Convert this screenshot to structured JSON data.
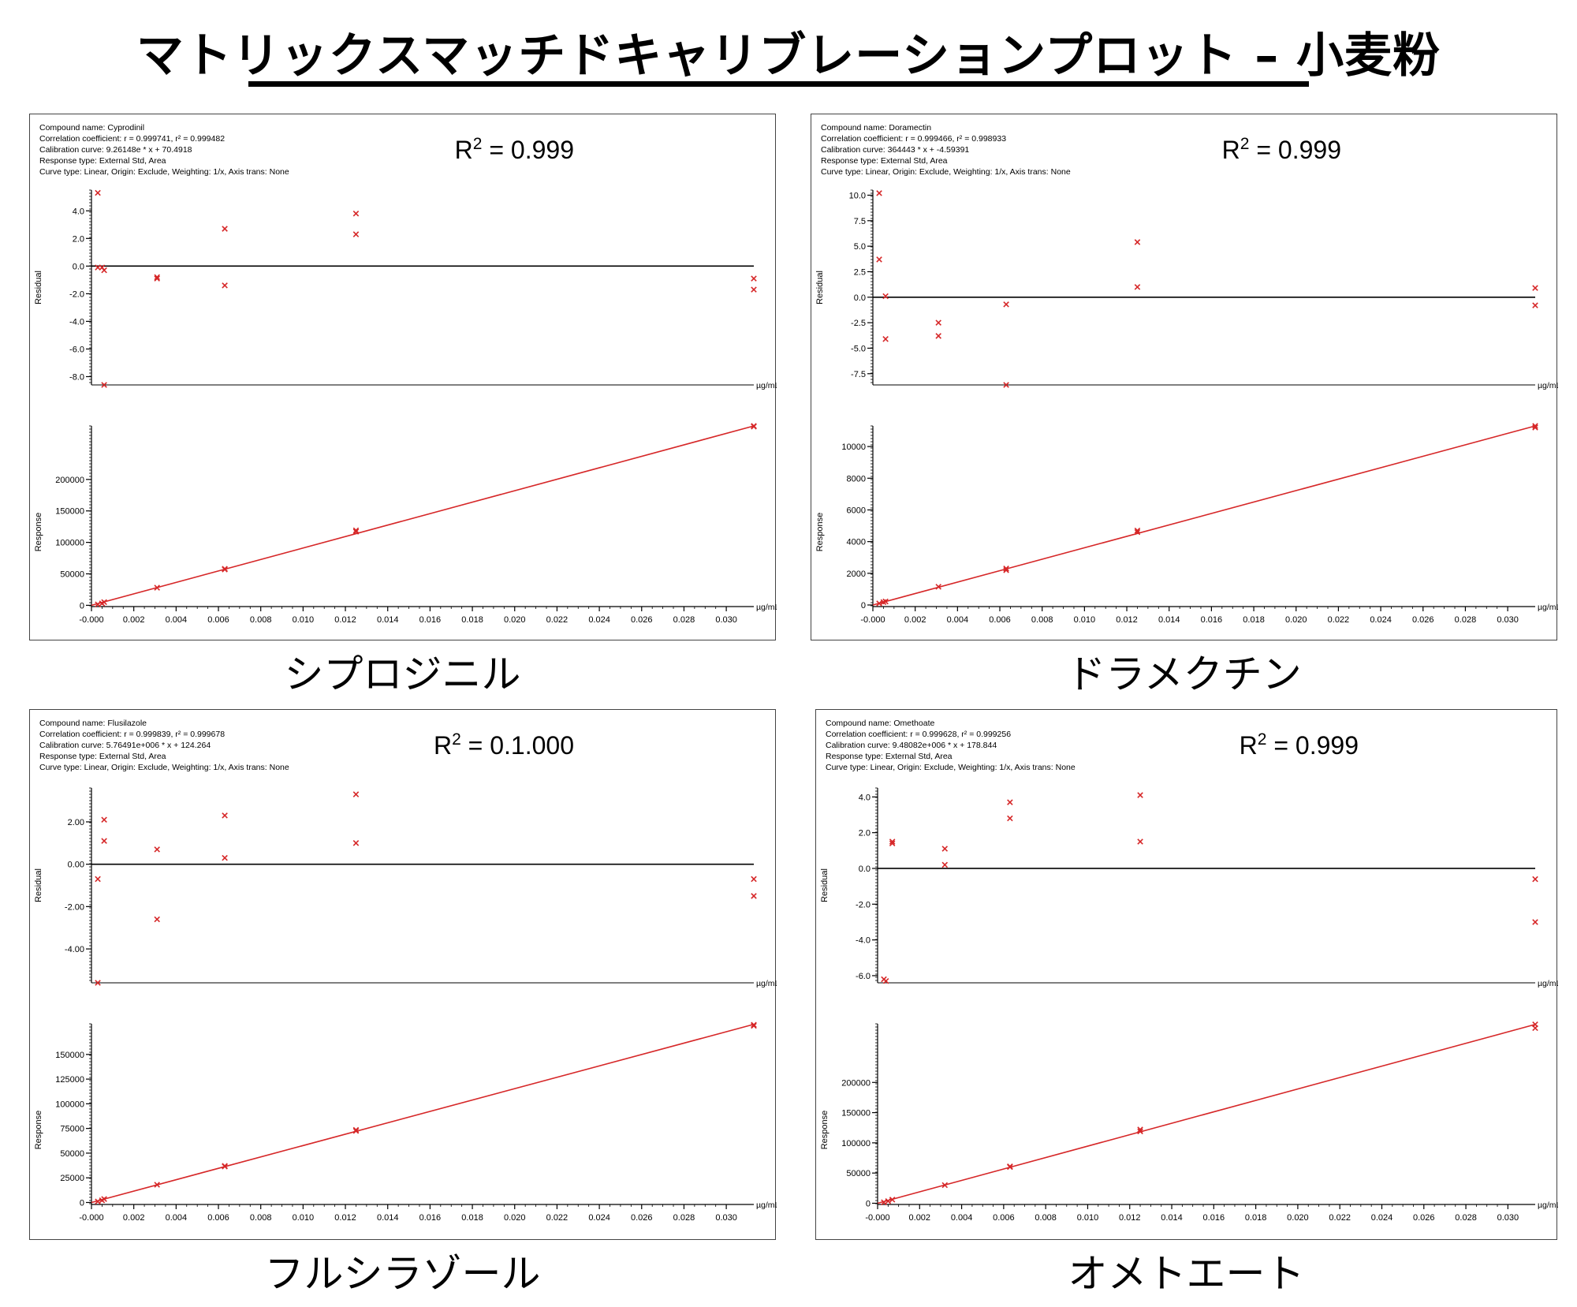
{
  "title": "マトリックスマッチドキャリブレーションプロット – 小麦粉",
  "x_unit": "µg/mL",
  "residual_ylabel": "Residual",
  "response_ylabel": "Response",
  "x_ticks": [
    "-0.000",
    "0.002",
    "0.004",
    "0.006",
    "0.008",
    "0.010",
    "0.012",
    "0.014",
    "0.016",
    "0.018",
    "0.020",
    "0.022",
    "0.024",
    "0.026",
    "0.028",
    "0.030"
  ],
  "colors": {
    "point": "#d62728",
    "fit": "#d62728",
    "zero_line": "#000000"
  },
  "chart_data": [
    {
      "type": "scatter",
      "panel_name": "シプロジニル",
      "info": [
        "Compound name: Cyprodinil",
        "Correlation coefficient: r = 0.999741, r² = 0.999482",
        "Calibration curve: 9.26148e * x + 70.4918",
        "Response type: External Std, Area",
        "Curve type: Linear, Origin: Exclude, Weighting: 1/x, Axis trans: None"
      ],
      "r2_text": "= 0.999",
      "residual": {
        "ylim": [
          -8.6,
          5.5
        ],
        "yticks": [
          4.0,
          2.0,
          0.0,
          -2.0,
          -4.0,
          -6.0,
          -8.0
        ],
        "ytick_labels": [
          "4.0",
          "2.0",
          "0.0",
          "-2.0",
          "-4.0",
          "-6.0",
          "-8.0"
        ],
        "points": [
          [
            0.0003,
            5.3
          ],
          [
            0.0003,
            -0.1
          ],
          [
            0.0005,
            -0.1
          ],
          [
            0.0006,
            -0.3
          ],
          [
            0.0006,
            -8.6
          ],
          [
            0.0031,
            -0.8
          ],
          [
            0.0031,
            -0.9
          ],
          [
            0.0063,
            2.7
          ],
          [
            0.0063,
            -1.4
          ],
          [
            0.0125,
            3.8
          ],
          [
            0.0125,
            2.3
          ],
          [
            0.0313,
            -0.9
          ],
          [
            0.0313,
            -1.7
          ]
        ]
      },
      "response": {
        "ylim": [
          -2000,
          285000
        ],
        "yticks": [
          0,
          50000,
          100000,
          150000,
          200000
        ],
        "ytick_labels": [
          "0",
          "50000",
          "100000",
          "150000",
          "200000"
        ],
        "points": [
          [
            0.0003,
            1500
          ],
          [
            0.0005,
            3000
          ],
          [
            0.0006,
            5000
          ],
          [
            0.0031,
            28000
          ],
          [
            0.0063,
            57000
          ],
          [
            0.0063,
            58000
          ],
          [
            0.0125,
            117000
          ],
          [
            0.0125,
            119000
          ],
          [
            0.0313,
            285000
          ],
          [
            0.0313,
            284000
          ]
        ],
        "fit": [
          [
            0.0,
            0
          ],
          [
            0.0313,
            285000
          ]
        ]
      }
    },
    {
      "type": "scatter",
      "panel_name": "ドラメクチン",
      "info": [
        "Compound name: Doramectin",
        "Correlation coefficient: r = 0.999466, r² = 0.998933",
        "Calibration curve: 364443 * x + -4.59391",
        "Response type: External Std, Area",
        "Curve type: Linear, Origin: Exclude, Weighting: 1/x, Axis trans: None"
      ],
      "r2_text": "= 0.999",
      "residual": {
        "ylim": [
          -8.6,
          10.5
        ],
        "yticks": [
          10.0,
          7.5,
          5.0,
          2.5,
          0.0,
          -2.5,
          -5.0,
          -7.5
        ],
        "ytick_labels": [
          "10.0",
          "7.5",
          "5.0",
          "2.5",
          "0.0",
          "-2.5",
          "-5.0",
          "-7.5"
        ],
        "points": [
          [
            0.0003,
            10.2
          ],
          [
            0.0003,
            3.7
          ],
          [
            0.0006,
            0.1
          ],
          [
            0.0006,
            -4.1
          ],
          [
            0.0031,
            -2.5
          ],
          [
            0.0031,
            -3.8
          ],
          [
            0.0063,
            -0.7
          ],
          [
            0.0063,
            -8.6
          ],
          [
            0.0125,
            5.4
          ],
          [
            0.0125,
            1.0
          ],
          [
            0.0313,
            0.9
          ],
          [
            0.0313,
            -0.8
          ]
        ]
      },
      "response": {
        "ylim": [
          -100,
          11300
        ],
        "yticks": [
          0,
          2000,
          4000,
          6000,
          8000,
          10000
        ],
        "ytick_labels": [
          "0",
          "2000",
          "4000",
          "6000",
          "8000",
          "10000"
        ],
        "points": [
          [
            0.0003,
            100
          ],
          [
            0.0005,
            180
          ],
          [
            0.0006,
            220
          ],
          [
            0.0031,
            1150
          ],
          [
            0.0063,
            2200
          ],
          [
            0.0063,
            2300
          ],
          [
            0.0125,
            4600
          ],
          [
            0.0125,
            4700
          ],
          [
            0.0313,
            11300
          ],
          [
            0.0313,
            11200
          ]
        ],
        "fit": [
          [
            0.0,
            0
          ],
          [
            0.0313,
            11300
          ]
        ]
      }
    },
    {
      "type": "scatter",
      "panel_name": "フルシラゾール",
      "info": [
        "Compound name: Flusilazole",
        "Correlation coefficient: r = 0.999839, r² = 0.999678",
        "Calibration curve: 5.76491e+006 * x + 124.264",
        "Response type: External Std, Area",
        "Curve type: Linear, Origin: Exclude, Weighting: 1/x, Axis trans: None"
      ],
      "r2_text": "= 0.1.000",
      "residual": {
        "ylim": [
          -5.6,
          3.6
        ],
        "yticks": [
          2.0,
          0.0,
          -2.0,
          -4.0
        ],
        "ytick_labels": [
          "2.00",
          "0.00",
          "-2.00",
          "-4.00"
        ],
        "points": [
          [
            0.0003,
            -0.7
          ],
          [
            0.0003,
            -5.6
          ],
          [
            0.0006,
            2.1
          ],
          [
            0.0006,
            1.1
          ],
          [
            0.0031,
            0.7
          ],
          [
            0.0031,
            -2.6
          ],
          [
            0.0063,
            2.3
          ],
          [
            0.0063,
            0.3
          ],
          [
            0.0125,
            3.3
          ],
          [
            0.0125,
            1.0
          ],
          [
            0.0313,
            -0.7
          ],
          [
            0.0313,
            -1.5
          ]
        ]
      },
      "response": {
        "ylim": [
          -2000,
          181000
        ],
        "yticks": [
          0,
          25000,
          50000,
          75000,
          100000,
          125000,
          150000
        ],
        "ytick_labels": [
          "0",
          "25000",
          "50000",
          "75000",
          "100000",
          "125000",
          "150000"
        ],
        "points": [
          [
            0.0003,
            1000
          ],
          [
            0.0005,
            2200
          ],
          [
            0.0006,
            3500
          ],
          [
            0.0031,
            18000
          ],
          [
            0.0063,
            36500
          ],
          [
            0.0063,
            37000
          ],
          [
            0.0125,
            72500
          ],
          [
            0.0125,
            73500
          ],
          [
            0.0313,
            180000
          ],
          [
            0.0313,
            179000
          ]
        ],
        "fit": [
          [
            0.0,
            0
          ],
          [
            0.0313,
            180500
          ]
        ]
      }
    },
    {
      "type": "scatter",
      "panel_name": "オメトエート",
      "info": [
        "Compound name: Omethoate",
        "Correlation coefficient: r = 0.999628, r² = 0.999256",
        "Calibration curve: 9.48082e+006 * x + 178.844",
        "Response type: External Std, Area",
        "Curve type: Linear, Origin: Exclude, Weighting: 1/x, Axis trans: None"
      ],
      "r2_text": "= 0.999",
      "residual": {
        "ylim": [
          -6.4,
          4.5
        ],
        "yticks": [
          4.0,
          2.0,
          0.0,
          -2.0,
          -4.0,
          -6.0
        ],
        "ytick_labels": [
          "4.0",
          "2.0",
          "0.0",
          "-2.0",
          "-4.0",
          "-6.0"
        ],
        "points": [
          [
            0.0003,
            -6.2
          ],
          [
            0.0004,
            -6.3
          ],
          [
            0.0007,
            1.5
          ],
          [
            0.0007,
            1.4
          ],
          [
            0.0032,
            1.1
          ],
          [
            0.0032,
            0.2
          ],
          [
            0.0063,
            3.7
          ],
          [
            0.0063,
            2.8
          ],
          [
            0.0125,
            4.1
          ],
          [
            0.0125,
            1.5
          ],
          [
            0.0313,
            -0.6
          ],
          [
            0.0313,
            -3.0
          ]
        ]
      },
      "response": {
        "ylim": [
          -2000,
          297000
        ],
        "yticks": [
          0,
          50000,
          100000,
          150000,
          200000
        ],
        "ytick_labels": [
          "0",
          "50000",
          "100000",
          "150000",
          "200000"
        ],
        "points": [
          [
            0.0003,
            1500
          ],
          [
            0.0005,
            3500
          ],
          [
            0.0007,
            6000
          ],
          [
            0.0032,
            30000
          ],
          [
            0.0063,
            60000
          ],
          [
            0.0063,
            61000
          ],
          [
            0.0125,
            119000
          ],
          [
            0.0125,
            122000
          ],
          [
            0.0313,
            296000
          ],
          [
            0.0313,
            290000
          ]
        ],
        "fit": [
          [
            0.0,
            0
          ],
          [
            0.0313,
            296000
          ]
        ]
      }
    }
  ]
}
